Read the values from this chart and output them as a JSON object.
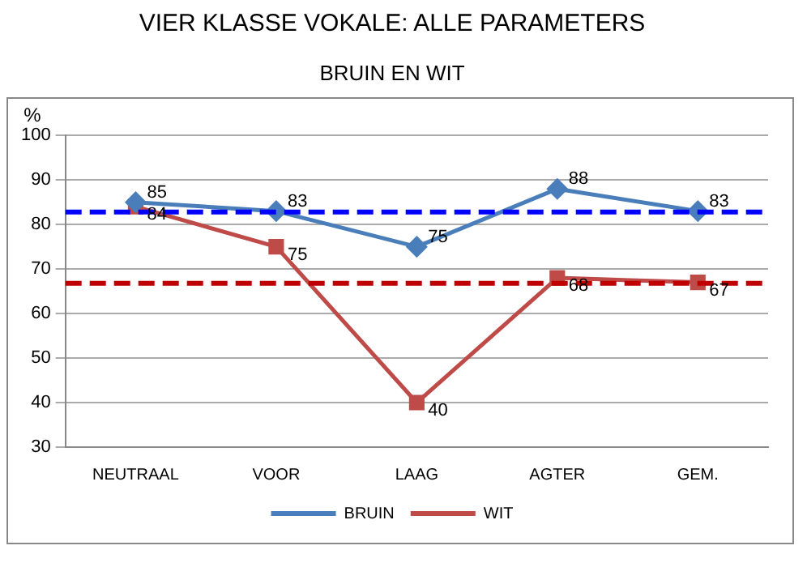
{
  "chart_data": {
    "type": "line",
    "title": "VIER KLASSE VOKALE: ALLE PARAMETERS",
    "subtitle": "BRUIN EN WIT",
    "ylabel": "%",
    "categories": [
      "NEUTRAAL",
      "VOOR",
      "LAAG",
      "AGTER",
      "GEM."
    ],
    "series": [
      {
        "name": "BRUIN",
        "color": "#4a7ebb",
        "values": [
          85,
          83,
          75,
          88,
          83
        ],
        "marker": "diamond"
      },
      {
        "name": "WIT",
        "color": "#be4b48",
        "values": [
          84,
          75,
          40,
          68,
          67
        ],
        "marker": "square"
      }
    ],
    "ylim": [
      30,
      100
    ],
    "yticks": [
      30,
      40,
      50,
      60,
      70,
      80,
      90,
      100
    ],
    "grid": "y",
    "legend": "bottom",
    "data_labels": true,
    "ref_lines": [
      {
        "axis": "y",
        "value": 82.8,
        "color": "#0000ff",
        "line_style": "dashed"
      },
      {
        "axis": "y",
        "value": 66.8,
        "color": "#c00000",
        "line_style": "dashed"
      }
    ]
  }
}
